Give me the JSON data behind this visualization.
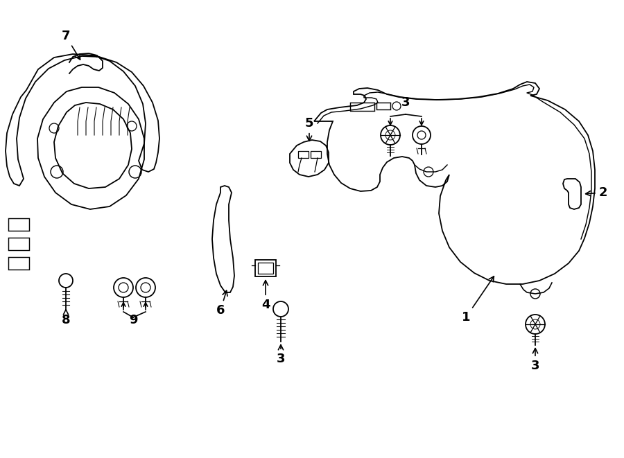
{
  "bg_color": "#ffffff",
  "line_color": "#000000",
  "lw": 1.3,
  "fig_width": 9.0,
  "fig_height": 6.61,
  "dpi": 100
}
